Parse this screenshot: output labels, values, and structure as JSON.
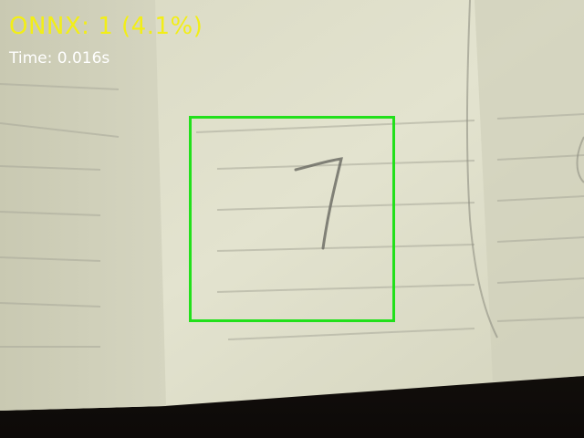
{
  "overlay": {
    "prediction_label": "ONNX: 1 (4.1%)",
    "timing_label": "Time: 0.016s"
  },
  "colors": {
    "prediction_text": "#f2ee17",
    "timing_text": "#ffffff",
    "roi_box": "#22e01b",
    "paper": "#dcdcc8",
    "shadow": "#141010"
  },
  "roi": {
    "detected_digit_hint": "7"
  }
}
